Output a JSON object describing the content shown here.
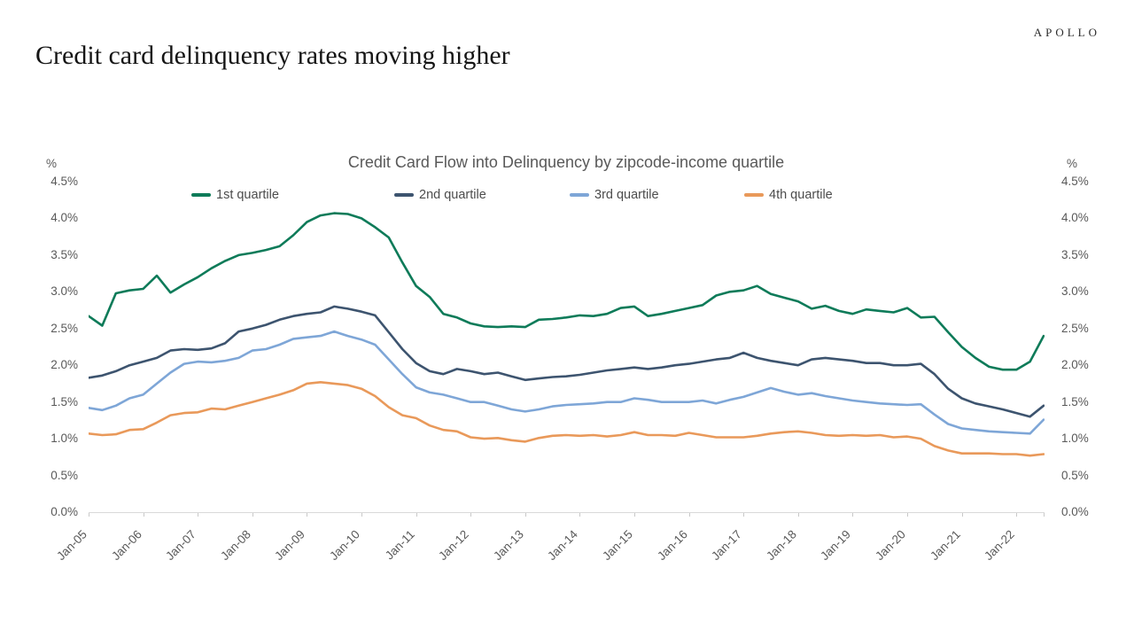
{
  "header": {
    "title": "Credit card delinquency rates moving higher",
    "brand": "APOLLO"
  },
  "chart_data": {
    "type": "line",
    "title": "Credit Card Flow into Delinquency by zipcode-income quartile",
    "unit_label": "%",
    "legend_position": "top",
    "grid": false,
    "background": "#ffffff",
    "axis_line_color": "#d9d9d9",
    "text_color": "#595959",
    "frequency": "quarterly",
    "x_start": "Jan-05",
    "x_end": "Jul-22",
    "y_axis": {
      "min": 0,
      "max": 4.5,
      "step": 0.5,
      "sides": "both",
      "tick_labels": [
        "4.5%",
        "4.0%",
        "3.5%",
        "3.0%",
        "2.5%",
        "2.0%",
        "1.5%",
        "1.0%",
        "0.5%",
        "0.0%"
      ]
    },
    "x_axis": {
      "points_per_tick": 4,
      "tick_labels": [
        "Jan-05",
        "Jan-06",
        "Jan-07",
        "Jan-08",
        "Jan-09",
        "Jan-10",
        "Jan-11",
        "Jan-12",
        "Jan-13",
        "Jan-14",
        "Jan-15",
        "Jan-16",
        "Jan-17",
        "Jan-18",
        "Jan-19",
        "Jan-20",
        "Jan-21",
        "Jan-22"
      ]
    },
    "series": [
      {
        "name": "1st quartile",
        "color": "#0e7b59",
        "values": [
          2.67,
          2.54,
          2.98,
          3.02,
          3.04,
          3.22,
          2.99,
          3.1,
          3.2,
          3.32,
          3.42,
          3.5,
          3.53,
          3.57,
          3.62,
          3.77,
          3.95,
          4.04,
          4.07,
          4.06,
          4.0,
          3.88,
          3.74,
          3.4,
          3.08,
          2.93,
          2.7,
          2.65,
          2.57,
          2.53,
          2.52,
          2.53,
          2.52,
          2.62,
          2.63,
          2.65,
          2.68,
          2.67,
          2.7,
          2.78,
          2.8,
          2.67,
          2.7,
          2.74,
          2.78,
          2.82,
          2.95,
          3.0,
          3.02,
          3.08,
          2.97,
          2.92,
          2.87,
          2.77,
          2.81,
          2.74,
          2.7,
          2.76,
          2.74,
          2.72,
          2.78,
          2.65,
          2.66,
          2.45,
          2.25,
          2.1,
          1.98,
          1.94,
          1.94,
          2.05,
          2.4
        ]
      },
      {
        "name": "2nd quartile",
        "color": "#3d546f",
        "values": [
          1.83,
          1.86,
          1.92,
          2.0,
          2.05,
          2.1,
          2.2,
          2.22,
          2.21,
          2.23,
          2.3,
          2.46,
          2.5,
          2.55,
          2.62,
          2.67,
          2.7,
          2.72,
          2.8,
          2.77,
          2.73,
          2.68,
          2.45,
          2.22,
          2.03,
          1.92,
          1.88,
          1.95,
          1.92,
          1.88,
          1.9,
          1.85,
          1.8,
          1.82,
          1.84,
          1.85,
          1.87,
          1.9,
          1.93,
          1.95,
          1.97,
          1.95,
          1.97,
          2.0,
          2.02,
          2.05,
          2.08,
          2.1,
          2.17,
          2.1,
          2.06,
          2.03,
          2.0,
          2.08,
          2.1,
          2.08,
          2.06,
          2.03,
          2.03,
          2.0,
          2.0,
          2.02,
          1.88,
          1.68,
          1.55,
          1.48,
          1.44,
          1.4,
          1.35,
          1.3,
          1.45
        ]
      },
      {
        "name": "3rd quartile",
        "color": "#7ea6d7",
        "values": [
          1.42,
          1.39,
          1.45,
          1.55,
          1.6,
          1.75,
          1.9,
          2.02,
          2.05,
          2.04,
          2.06,
          2.1,
          2.2,
          2.22,
          2.28,
          2.36,
          2.38,
          2.4,
          2.46,
          2.4,
          2.35,
          2.28,
          2.08,
          1.88,
          1.7,
          1.63,
          1.6,
          1.55,
          1.5,
          1.5,
          1.45,
          1.4,
          1.37,
          1.4,
          1.44,
          1.46,
          1.47,
          1.48,
          1.5,
          1.5,
          1.55,
          1.53,
          1.5,
          1.5,
          1.5,
          1.52,
          1.48,
          1.53,
          1.57,
          1.63,
          1.69,
          1.64,
          1.6,
          1.62,
          1.58,
          1.55,
          1.52,
          1.5,
          1.48,
          1.47,
          1.46,
          1.47,
          1.33,
          1.2,
          1.14,
          1.12,
          1.1,
          1.09,
          1.08,
          1.07,
          1.26
        ]
      },
      {
        "name": "4th quartile",
        "color": "#e9995a",
        "values": [
          1.07,
          1.05,
          1.06,
          1.12,
          1.13,
          1.22,
          1.32,
          1.35,
          1.36,
          1.41,
          1.4,
          1.45,
          1.5,
          1.55,
          1.6,
          1.66,
          1.75,
          1.77,
          1.75,
          1.73,
          1.68,
          1.58,
          1.43,
          1.32,
          1.28,
          1.18,
          1.12,
          1.1,
          1.02,
          1.0,
          1.01,
          0.98,
          0.96,
          1.01,
          1.04,
          1.05,
          1.04,
          1.05,
          1.03,
          1.05,
          1.09,
          1.05,
          1.05,
          1.04,
          1.08,
          1.05,
          1.02,
          1.02,
          1.02,
          1.04,
          1.07,
          1.09,
          1.1,
          1.08,
          1.05,
          1.04,
          1.05,
          1.04,
          1.05,
          1.02,
          1.03,
          1.0,
          0.9,
          0.84,
          0.8,
          0.8,
          0.8,
          0.79,
          0.79,
          0.77,
          0.79
        ]
      }
    ]
  }
}
